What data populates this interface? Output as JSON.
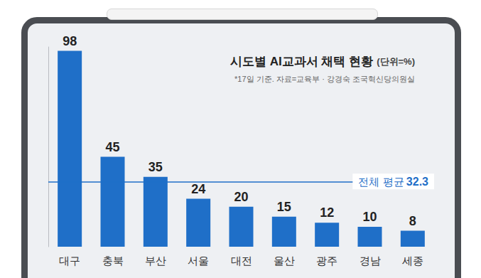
{
  "chart_data": {
    "type": "bar",
    "title": "시도별 AI교과서 채택 현황",
    "unit_note": "(단위=%)",
    "subtitle": "*17일 기준. 자료=교육부 · 강경숙 조국혁신당의원실",
    "categories": [
      "대구",
      "충북",
      "부산",
      "서울",
      "대전",
      "울산",
      "광주",
      "경남",
      "세종"
    ],
    "values": [
      98,
      45,
      35,
      24,
      20,
      15,
      12,
      10,
      8
    ],
    "color": "#1f6fc8",
    "ylim": [
      0,
      100
    ],
    "data_labels": true,
    "tick_labels": "x",
    "grid": false,
    "annotations": [
      {
        "text": "전체 평균",
        "value": 32.3
      }
    ]
  }
}
